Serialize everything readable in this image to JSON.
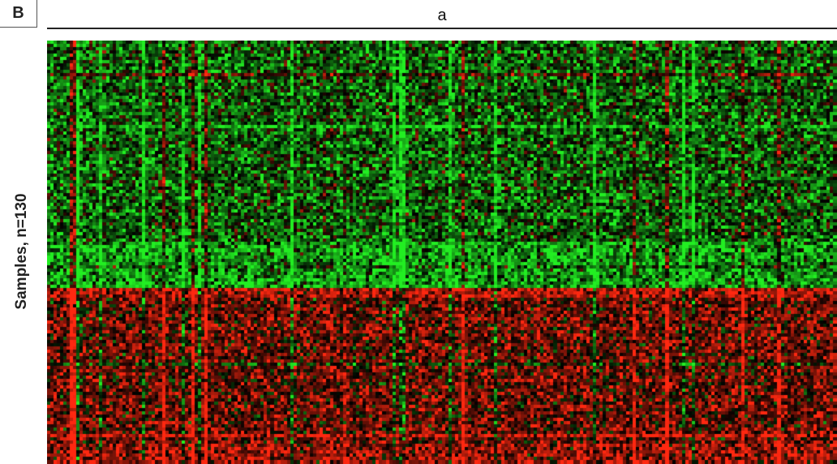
{
  "panel": {
    "label": "B"
  },
  "chart_data": {
    "type": "heatmap",
    "title": "",
    "group_label": "a",
    "xlabel": "",
    "ylabel": "Samples, n=130",
    "n_rows": 130,
    "n_cols": 240,
    "color_scale": {
      "low": "#22ee22",
      "mid": "#000000",
      "high": "#ff2a10"
    },
    "row_blocks": [
      {
        "rows": [
          0,
          75
        ],
        "trend": "predominantly green (low)"
      },
      {
        "rows": [
          76,
          129
        ],
        "trend": "predominantly red (high)"
      }
    ],
    "grid": false,
    "legend": "none"
  }
}
